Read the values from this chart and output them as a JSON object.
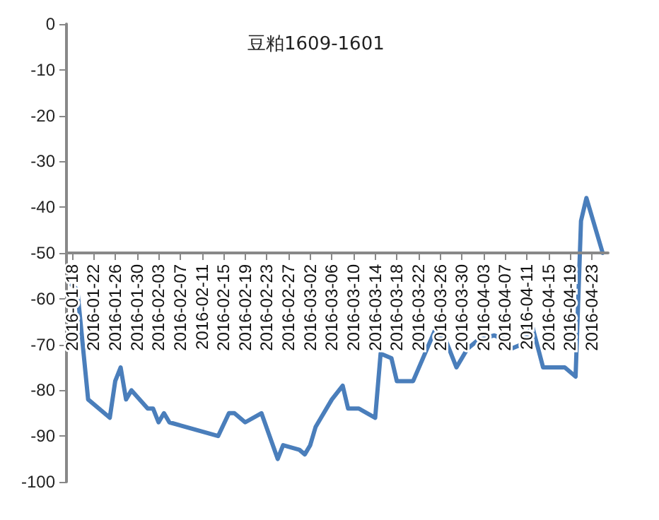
{
  "chart_data": {
    "type": "line",
    "title": "豆粕1609-1601",
    "x": [
      "2016-01-18",
      "2016-01-19",
      "2016-01-21",
      "2016-01-25",
      "2016-01-26",
      "2016-01-27",
      "2016-01-28",
      "2016-01-29",
      "2016-02-01",
      "2016-02-02",
      "2016-02-03",
      "2016-02-04",
      "2016-02-05",
      "2016-02-14",
      "2016-02-16",
      "2016-02-17",
      "2016-02-19",
      "2016-02-22",
      "2016-02-25",
      "2016-02-26",
      "2016-02-29",
      "2016-03-01",
      "2016-03-02",
      "2016-03-03",
      "2016-03-04",
      "2016-03-06",
      "2016-03-08",
      "2016-03-09",
      "2016-03-11",
      "2016-03-14",
      "2016-03-15",
      "2016-03-17",
      "2016-03-18",
      "2016-03-21",
      "2016-03-25",
      "2016-03-27",
      "2016-03-29",
      "2016-03-31",
      "2016-04-02",
      "2016-04-05",
      "2016-04-07",
      "2016-04-08",
      "2016-04-10",
      "2016-04-12",
      "2016-04-14",
      "2016-04-17",
      "2016-04-18",
      "2016-04-20",
      "2016-04-21",
      "2016-04-22",
      "2016-04-25"
    ],
    "series": [
      {
        "color": "#4a7ebb",
        "values": [
          -57,
          -58,
          -82,
          -86,
          -78,
          -75,
          -82,
          -80,
          -84,
          -84,
          -87,
          -85,
          -87,
          -90,
          -85,
          -85,
          -87,
          -85,
          -95,
          -92,
          -93,
          -94,
          -92,
          -88,
          -86,
          -82,
          -79,
          -84,
          -84,
          -86,
          -72,
          -73,
          -78,
          -78,
          -67,
          -69,
          -75,
          -71,
          -69,
          -68,
          -69,
          -71,
          -70,
          -66,
          -75,
          -75,
          -75,
          -77,
          -43,
          -38,
          -50
        ]
      }
    ],
    "xlim": [
      "2016-01-17",
      "2016-04-26"
    ],
    "xticks": [
      "2016-01-18",
      "2016-01-22",
      "2016-01-26",
      "2016-01-30",
      "2016-02-03",
      "2016-02-07",
      "2016-02-11",
      "2016-02-15",
      "2016-02-19",
      "2016-02-23",
      "2016-02-27",
      "2016-03-02",
      "2016-03-06",
      "2016-03-10",
      "2016-03-14",
      "2016-03-18",
      "2016-03-22",
      "2016-03-26",
      "2016-03-30",
      "2016-04-03",
      "2016-04-07",
      "2016-04-11",
      "2016-04-15",
      "2016-04-19",
      "2016-04-23"
    ],
    "ylim": [
      -100,
      0
    ],
    "yticks": [
      0,
      -10,
      -20,
      -30,
      -40,
      -50,
      -60,
      -70,
      -80,
      -90,
      -100
    ],
    "grid": false,
    "marker": "none",
    "line_style": "solid"
  }
}
